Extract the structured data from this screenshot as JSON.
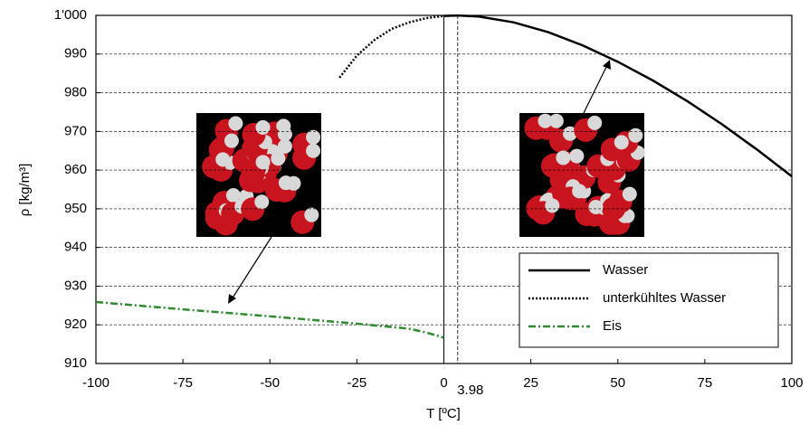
{
  "chart_data": {
    "type": "line",
    "x_label": "T [ºC]",
    "y_label": "ρ [kg/m³]",
    "xlim": [
      -100,
      100
    ],
    "ylim": [
      910,
      1000
    ],
    "xticks": [
      -100,
      -75,
      -50,
      -25,
      0,
      25,
      50,
      75,
      100
    ],
    "yticks": [
      910,
      920,
      930,
      940,
      950,
      960,
      970,
      980,
      990,
      {
        "value": 1000,
        "label": "1'000"
      }
    ],
    "marker_x": 3.98,
    "grid": true,
    "legend_position": "lower right",
    "series": [
      {
        "name": "Wasser",
        "color": "#000000",
        "style": "solid",
        "x": [
          0,
          3.98,
          10,
          20,
          30,
          40,
          50,
          60,
          70,
          80,
          90,
          100
        ],
        "values": [
          999.84,
          999.97,
          999.7,
          998.2,
          995.65,
          992.2,
          988.0,
          983.2,
          977.8,
          971.8,
          965.3,
          958.4
        ]
      },
      {
        "name": "unterkühltes Wasser",
        "color": "#000000",
        "style": "dotted",
        "x": [
          -30,
          -25,
          -20,
          -15,
          -10,
          -5,
          0
        ],
        "values": [
          983.9,
          989.6,
          993.6,
          996.5,
          998.2,
          999.3,
          999.84
        ]
      },
      {
        "name": "Eis",
        "color": "#2e8b2e",
        "style": "dashdot",
        "x": [
          -100,
          -75,
          -50,
          -25,
          -10,
          -5,
          0
        ],
        "values": [
          925.9,
          924.0,
          922.2,
          920.3,
          919.0,
          918.0,
          916.7
        ]
      }
    ]
  }
}
